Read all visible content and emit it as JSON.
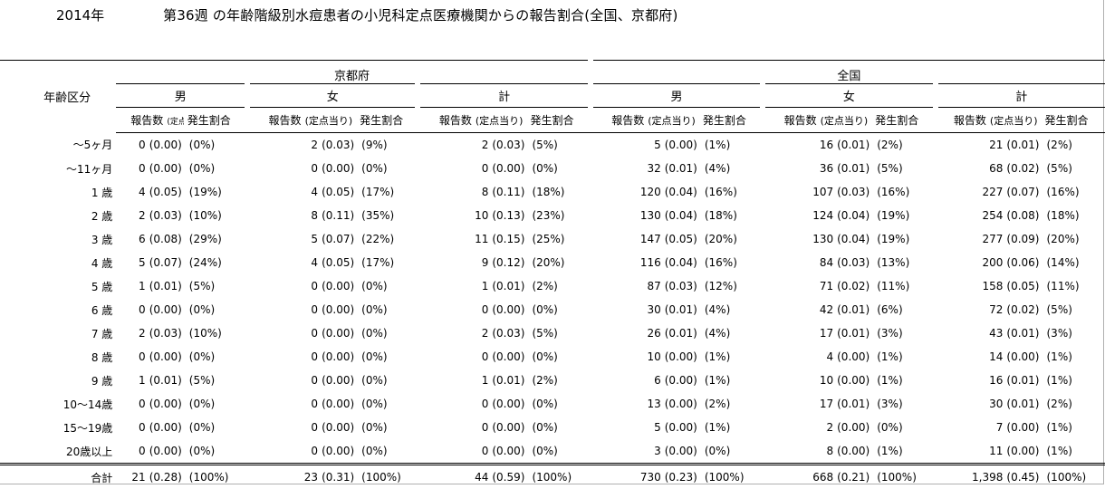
{
  "header": {
    "year": "2014年",
    "title": "第36週 の年齢階級別水痘患者の小児科定点医療機関からの報告割合(全国、京都府)"
  },
  "columns": {
    "age_label": "年齢区分",
    "region_kyoto": "京都府",
    "region_national": "全国",
    "male": "男",
    "female": "女",
    "total": "計",
    "count_label": "報告数",
    "per_site_label": "(定点当り)",
    "rate_label": "発生割合"
  },
  "rows": [
    {
      "age": "〜5ヶ月",
      "cells": [
        [
          "0",
          "(0.00)",
          "(0%)"
        ],
        [
          "2",
          "(0.03)",
          "(9%)"
        ],
        [
          "2",
          "(0.03)",
          "(5%)"
        ],
        [
          "5",
          "(0.00)",
          "(1%)"
        ],
        [
          "16",
          "(0.01)",
          "(2%)"
        ],
        [
          "21",
          "(0.01)",
          "(2%)"
        ]
      ]
    },
    {
      "age": "〜11ヶ月",
      "cells": [
        [
          "0",
          "(0.00)",
          "(0%)"
        ],
        [
          "0",
          "(0.00)",
          "(0%)"
        ],
        [
          "0",
          "(0.00)",
          "(0%)"
        ],
        [
          "32",
          "(0.01)",
          "(4%)"
        ],
        [
          "36",
          "(0.01)",
          "(5%)"
        ],
        [
          "68",
          "(0.02)",
          "(5%)"
        ]
      ]
    },
    {
      "age": "1 歳",
      "cells": [
        [
          "4",
          "(0.05)",
          "(19%)"
        ],
        [
          "4",
          "(0.05)",
          "(17%)"
        ],
        [
          "8",
          "(0.11)",
          "(18%)"
        ],
        [
          "120",
          "(0.04)",
          "(16%)"
        ],
        [
          "107",
          "(0.03)",
          "(16%)"
        ],
        [
          "227",
          "(0.07)",
          "(16%)"
        ]
      ]
    },
    {
      "age": "2 歳",
      "cells": [
        [
          "2",
          "(0.03)",
          "(10%)"
        ],
        [
          "8",
          "(0.11)",
          "(35%)"
        ],
        [
          "10",
          "(0.13)",
          "(23%)"
        ],
        [
          "130",
          "(0.04)",
          "(18%)"
        ],
        [
          "124",
          "(0.04)",
          "(19%)"
        ],
        [
          "254",
          "(0.08)",
          "(18%)"
        ]
      ]
    },
    {
      "age": "3 歳",
      "cells": [
        [
          "6",
          "(0.08)",
          "(29%)"
        ],
        [
          "5",
          "(0.07)",
          "(22%)"
        ],
        [
          "11",
          "(0.15)",
          "(25%)"
        ],
        [
          "147",
          "(0.05)",
          "(20%)"
        ],
        [
          "130",
          "(0.04)",
          "(19%)"
        ],
        [
          "277",
          "(0.09)",
          "(20%)"
        ]
      ]
    },
    {
      "age": "4 歳",
      "cells": [
        [
          "5",
          "(0.07)",
          "(24%)"
        ],
        [
          "4",
          "(0.05)",
          "(17%)"
        ],
        [
          "9",
          "(0.12)",
          "(20%)"
        ],
        [
          "116",
          "(0.04)",
          "(16%)"
        ],
        [
          "84",
          "(0.03)",
          "(13%)"
        ],
        [
          "200",
          "(0.06)",
          "(14%)"
        ]
      ]
    },
    {
      "age": "5 歳",
      "cells": [
        [
          "1",
          "(0.01)",
          "(5%)"
        ],
        [
          "0",
          "(0.00)",
          "(0%)"
        ],
        [
          "1",
          "(0.01)",
          "(2%)"
        ],
        [
          "87",
          "(0.03)",
          "(12%)"
        ],
        [
          "71",
          "(0.02)",
          "(11%)"
        ],
        [
          "158",
          "(0.05)",
          "(11%)"
        ]
      ]
    },
    {
      "age": "6 歳",
      "cells": [
        [
          "0",
          "(0.00)",
          "(0%)"
        ],
        [
          "0",
          "(0.00)",
          "(0%)"
        ],
        [
          "0",
          "(0.00)",
          "(0%)"
        ],
        [
          "30",
          "(0.01)",
          "(4%)"
        ],
        [
          "42",
          "(0.01)",
          "(6%)"
        ],
        [
          "72",
          "(0.02)",
          "(5%)"
        ]
      ]
    },
    {
      "age": "7 歳",
      "cells": [
        [
          "2",
          "(0.03)",
          "(10%)"
        ],
        [
          "0",
          "(0.00)",
          "(0%)"
        ],
        [
          "2",
          "(0.03)",
          "(5%)"
        ],
        [
          "26",
          "(0.01)",
          "(4%)"
        ],
        [
          "17",
          "(0.01)",
          "(3%)"
        ],
        [
          "43",
          "(0.01)",
          "(3%)"
        ]
      ]
    },
    {
      "age": "8 歳",
      "cells": [
        [
          "0",
          "(0.00)",
          "(0%)"
        ],
        [
          "0",
          "(0.00)",
          "(0%)"
        ],
        [
          "0",
          "(0.00)",
          "(0%)"
        ],
        [
          "10",
          "(0.00)",
          "(1%)"
        ],
        [
          "4",
          "(0.00)",
          "(1%)"
        ],
        [
          "14",
          "(0.00)",
          "(1%)"
        ]
      ]
    },
    {
      "age": "9 歳",
      "cells": [
        [
          "1",
          "(0.01)",
          "(5%)"
        ],
        [
          "0",
          "(0.00)",
          "(0%)"
        ],
        [
          "1",
          "(0.01)",
          "(2%)"
        ],
        [
          "6",
          "(0.00)",
          "(1%)"
        ],
        [
          "10",
          "(0.00)",
          "(1%)"
        ],
        [
          "16",
          "(0.01)",
          "(1%)"
        ]
      ]
    },
    {
      "age": "10〜14歳",
      "cells": [
        [
          "0",
          "(0.00)",
          "(0%)"
        ],
        [
          "0",
          "(0.00)",
          "(0%)"
        ],
        [
          "0",
          "(0.00)",
          "(0%)"
        ],
        [
          "13",
          "(0.00)",
          "(2%)"
        ],
        [
          "17",
          "(0.01)",
          "(3%)"
        ],
        [
          "30",
          "(0.01)",
          "(2%)"
        ]
      ]
    },
    {
      "age": "15〜19歳",
      "cells": [
        [
          "0",
          "(0.00)",
          "(0%)"
        ],
        [
          "0",
          "(0.00)",
          "(0%)"
        ],
        [
          "0",
          "(0.00)",
          "(0%)"
        ],
        [
          "5",
          "(0.00)",
          "(1%)"
        ],
        [
          "2",
          "(0.00)",
          "(0%)"
        ],
        [
          "7",
          "(0.00)",
          "(1%)"
        ]
      ]
    },
    {
      "age": "20歳以上",
      "cells": [
        [
          "0",
          "(0.00)",
          "(0%)"
        ],
        [
          "0",
          "(0.00)",
          "(0%)"
        ],
        [
          "0",
          "(0.00)",
          "(0%)"
        ],
        [
          "3",
          "(0.00)",
          "(0%)"
        ],
        [
          "8",
          "(0.00)",
          "(1%)"
        ],
        [
          "11",
          "(0.00)",
          "(1%)"
        ]
      ]
    }
  ],
  "total_row": {
    "age": "合計",
    "cells": [
      [
        "21",
        "(0.28)",
        "(100%)"
      ],
      [
        "23",
        "(0.31)",
        "(100%)"
      ],
      [
        "44",
        "(0.59)",
        "(100%)"
      ],
      [
        "730",
        "(0.23)",
        "(100%)"
      ],
      [
        "668",
        "(0.21)",
        "(100%)"
      ],
      [
        "1,398",
        "(0.45)",
        "(100%)"
      ]
    ]
  }
}
